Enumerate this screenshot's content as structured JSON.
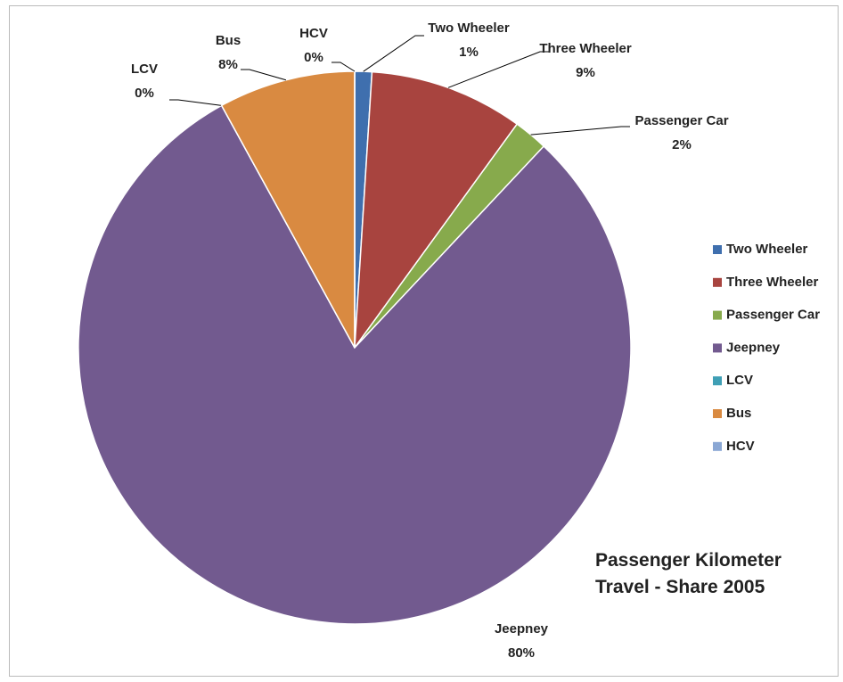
{
  "chart_data": {
    "type": "pie",
    "title": "Passenger Kilometer Travel - Share 2005",
    "categories": [
      "Two Wheeler",
      "Three Wheeler",
      "Passenger Car",
      "Jeepney",
      "LCV",
      "Bus",
      "HCV"
    ],
    "values": [
      1,
      9,
      2,
      80,
      0,
      8,
      0
    ],
    "value_labels": [
      "1%",
      "9%",
      "2%",
      "80%",
      "0%",
      "8%",
      "0%"
    ],
    "colors": [
      "#3f6fae",
      "#a8443f",
      "#87aa4c",
      "#725a8f",
      "#3f9fb5",
      "#d98a41",
      "#8aa7d4"
    ],
    "legend": "right"
  }
}
